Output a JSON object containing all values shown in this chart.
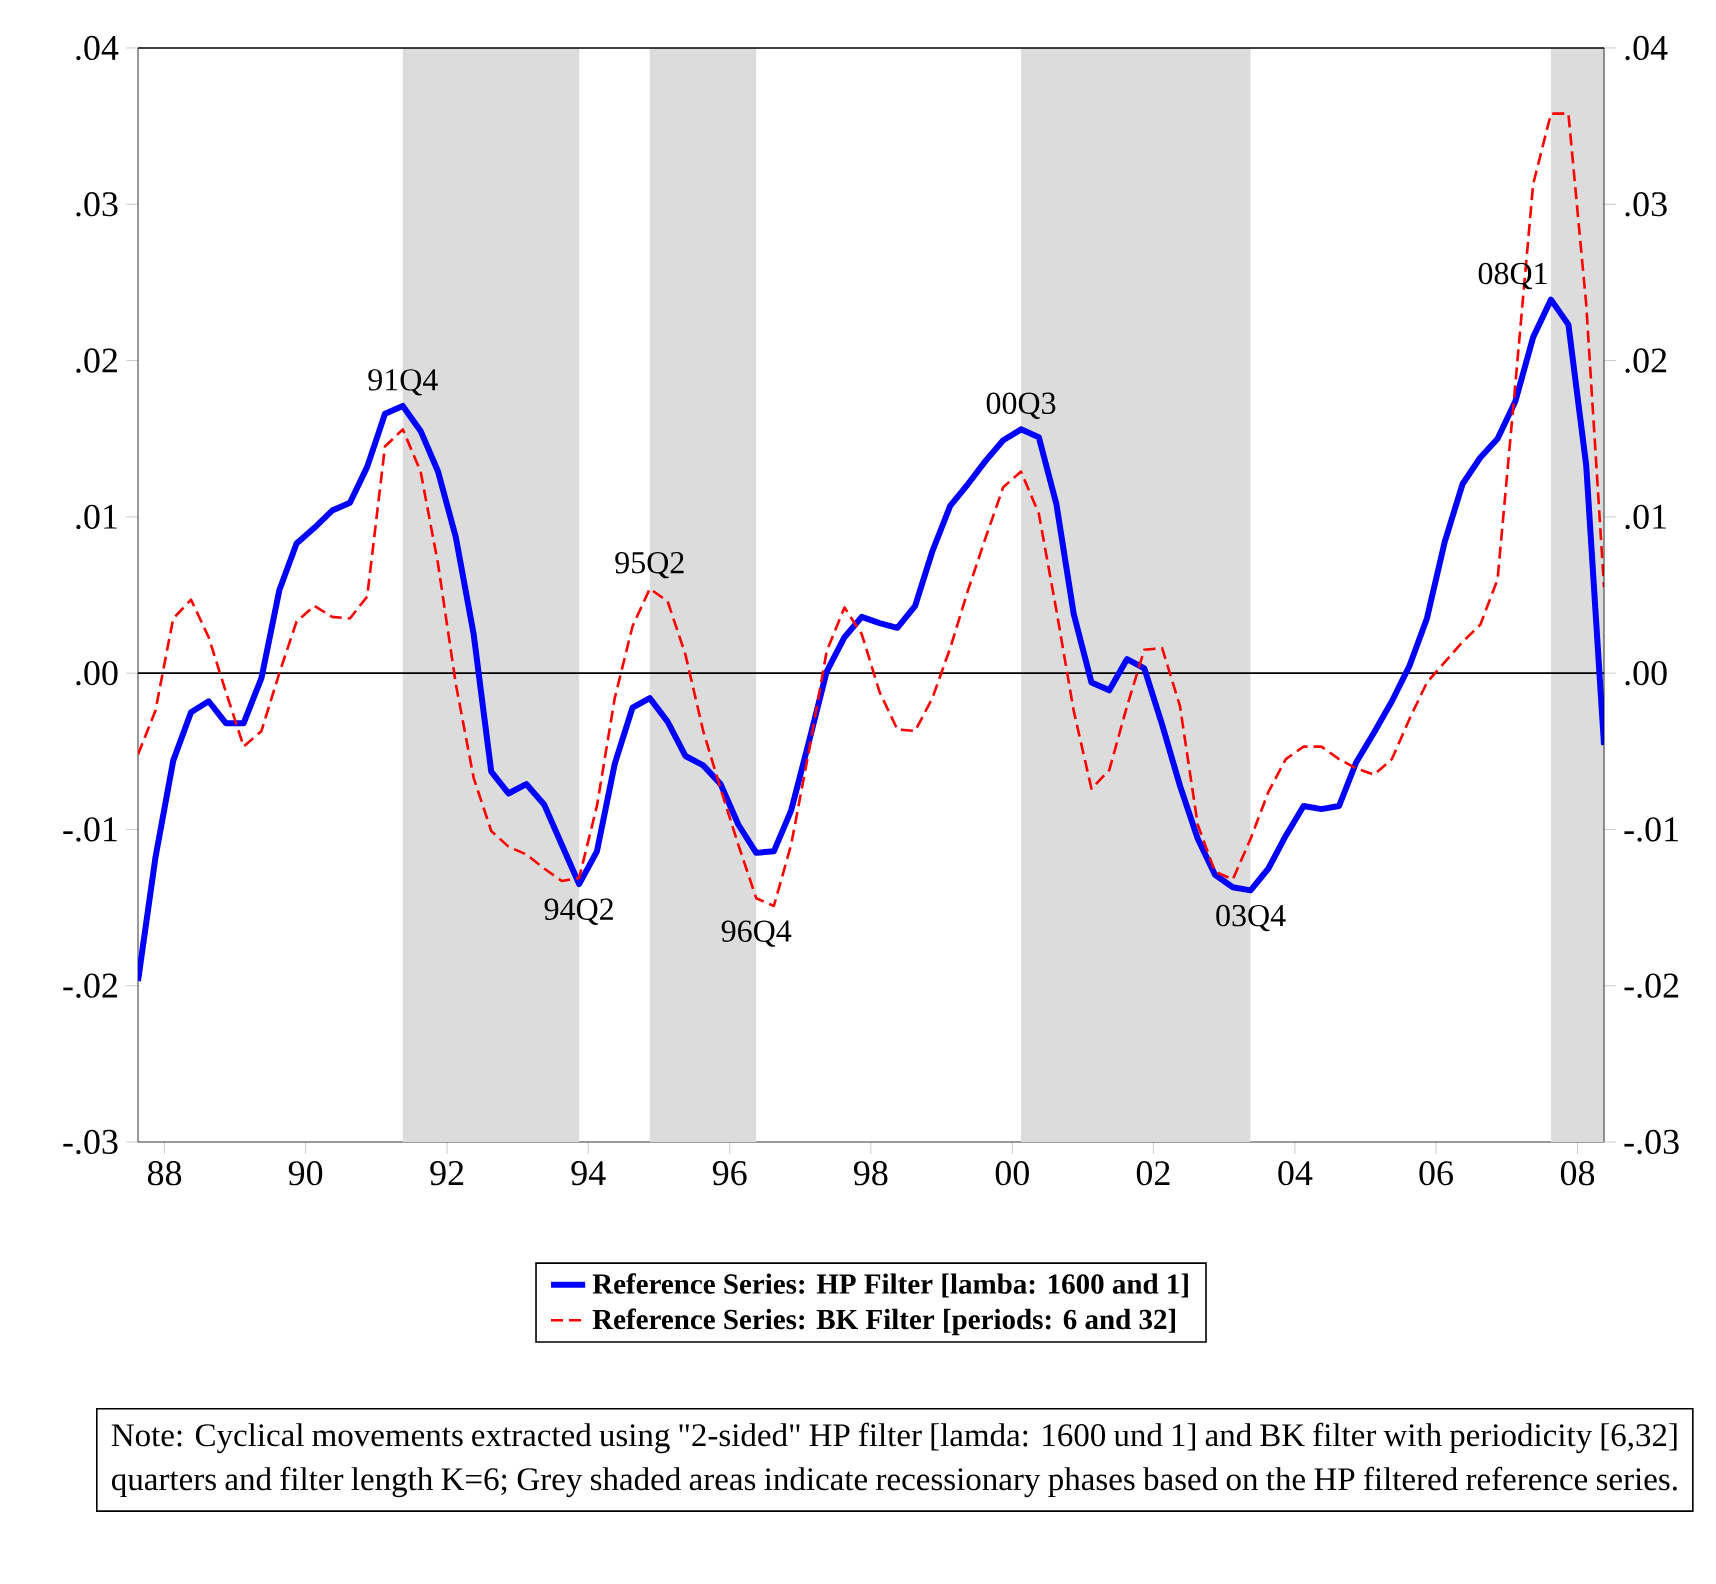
{
  "chart_data": {
    "type": "line",
    "x": [
      "1988-02-15",
      "1988-05-15",
      "1988-08-15",
      "1988-11-15",
      "1989-02-15",
      "1989-05-15",
      "1989-08-15",
      "1989-11-15",
      "1990-02-15",
      "1990-05-15",
      "1990-08-15",
      "1990-11-15",
      "1991-02-15",
      "1991-05-15",
      "1991-08-15",
      "1991-11-15",
      "1992-02-15",
      "1992-05-15",
      "1992-08-15",
      "1992-11-15",
      "1993-02-15",
      "1993-05-15",
      "1993-08-15",
      "1993-11-15",
      "1994-02-15",
      "1994-05-15",
      "1994-08-15",
      "1994-11-15",
      "1995-02-15",
      "1995-05-15",
      "1995-08-15",
      "1995-11-15",
      "1996-02-15",
      "1996-05-15",
      "1996-08-15",
      "1996-11-15",
      "1997-02-15",
      "1997-05-15",
      "1997-08-15",
      "1997-11-15",
      "1998-02-15",
      "1998-05-15",
      "1998-08-15",
      "1998-11-15",
      "1999-02-15",
      "1999-05-15",
      "1999-08-15",
      "1999-11-15",
      "2000-02-15",
      "2000-05-15",
      "2000-08-15",
      "2000-11-15",
      "2001-02-15",
      "2001-05-15",
      "2001-08-15",
      "2001-11-15",
      "2002-02-15",
      "2002-05-15",
      "2002-08-15",
      "2002-11-15",
      "2003-02-15",
      "2003-05-15",
      "2003-08-15",
      "2003-11-15",
      "2004-02-15",
      "2004-05-15",
      "2004-08-15",
      "2004-11-15",
      "2005-02-15",
      "2005-05-15",
      "2005-08-15",
      "2005-11-15",
      "2006-02-15",
      "2006-05-15",
      "2006-08-15",
      "2006-11-15",
      "2007-02-15",
      "2007-05-15",
      "2007-08-15",
      "2007-11-15",
      "2008-02-15",
      "2008-05-15",
      "2008-08-15",
      "2008-11-15"
    ],
    "series": [
      {
        "name": "Reference Series: HP Filter [lamba: 1600 and 1]",
        "color": "#0000ff",
        "line_style": "solid",
        "values": [
          -0.0197,
          -0.0118,
          -0.0056,
          -0.0025,
          -0.0018,
          -0.0032,
          -0.0032,
          -0.0003,
          0.0053,
          0.0083,
          0.0093,
          0.0104,
          0.0109,
          0.0132,
          0.0166,
          0.0171,
          0.0155,
          0.0129,
          0.0087,
          0.0025,
          -0.0063,
          -0.0077,
          -0.0071,
          -0.0084,
          -0.011,
          -0.0135,
          -0.0114,
          -0.0058,
          -0.0022,
          -0.0016,
          -0.0031,
          -0.0053,
          -0.0059,
          -0.0071,
          -0.0097,
          -0.0115,
          -0.0114,
          -0.0088,
          -0.0044,
          0.0001,
          0.0023,
          0.0036,
          0.0032,
          0.0029,
          0.0043,
          0.0078,
          0.0107,
          0.0121,
          0.0136,
          0.0149,
          0.0156,
          0.0151,
          0.0108,
          0.0038,
          -0.0006,
          -0.0011,
          0.0009,
          0.0003,
          -0.0033,
          -0.0072,
          -0.0106,
          -0.0129,
          -0.0137,
          -0.0139,
          -0.0125,
          -0.0104,
          -0.0085,
          -0.0087,
          -0.0085,
          -0.0057,
          -0.0038,
          -0.0018,
          0.0005,
          0.0035,
          0.0084,
          0.0121,
          0.0138,
          0.015,
          0.0174,
          0.0215,
          0.0239,
          0.0223,
          0.0133,
          -0.0046
        ]
      },
      {
        "name": "Reference Series: BK Filter [periods: 6 and 32]",
        "color": "#ff0000",
        "line_style": "dashed",
        "values": [
          -0.0052,
          -0.0024,
          0.0035,
          0.0047,
          0.0023,
          -0.0012,
          -0.0047,
          -0.0037,
          0.0,
          0.0033,
          0.0043,
          0.0036,
          0.0035,
          0.0049,
          0.0145,
          0.0156,
          0.0129,
          0.007,
          -0.0007,
          -0.0067,
          -0.0101,
          -0.0111,
          -0.0116,
          -0.0125,
          -0.0133,
          -0.0131,
          -0.0085,
          -0.0016,
          0.003,
          0.0054,
          0.0046,
          0.0012,
          -0.0037,
          -0.0074,
          -0.011,
          -0.0144,
          -0.0149,
          -0.011,
          -0.005,
          0.0014,
          0.0042,
          0.0025,
          -0.0012,
          -0.0036,
          -0.0037,
          -0.0016,
          0.0016,
          0.0053,
          0.0087,
          0.0119,
          0.0129,
          0.0102,
          0.004,
          -0.0024,
          -0.0074,
          -0.0062,
          -0.0021,
          0.0015,
          0.0016,
          -0.0021,
          -0.0097,
          -0.0127,
          -0.0132,
          -0.0106,
          -0.0076,
          -0.0055,
          -0.0047,
          -0.0047,
          -0.0055,
          -0.0061,
          -0.0065,
          -0.0055,
          -0.0029,
          -0.0006,
          0.0007,
          0.002,
          0.0031,
          0.006,
          0.0185,
          0.0313,
          0.0358,
          0.0358,
          0.0236,
          0.0055
        ]
      }
    ],
    "xlim": [
      "1988-02-15",
      "2008-11-15"
    ],
    "xticks": [
      {
        "value": "1988-07-01",
        "label": "88"
      },
      {
        "value": "1990-07-01",
        "label": "90"
      },
      {
        "value": "1992-07-01",
        "label": "92"
      },
      {
        "value": "1994-07-01",
        "label": "94"
      },
      {
        "value": "1996-07-01",
        "label": "96"
      },
      {
        "value": "1998-07-01",
        "label": "98"
      },
      {
        "value": "2000-07-01",
        "label": "00"
      },
      {
        "value": "2002-07-01",
        "label": "02"
      },
      {
        "value": "2004-07-01",
        "label": "04"
      },
      {
        "value": "2006-07-01",
        "label": "06"
      },
      {
        "value": "2008-07-01",
        "label": "08"
      }
    ],
    "ylim": [
      -0.03,
      0.04
    ],
    "yticks": [
      {
        "value": -0.03,
        "label": "-.03"
      },
      {
        "value": -0.02,
        "label": "-.02"
      },
      {
        "value": -0.01,
        "label": "-.01"
      },
      {
        "value": 0,
        "label": ".00"
      },
      {
        "value": 0.01,
        "label": ".01"
      },
      {
        "value": 0.02,
        "label": ".02"
      },
      {
        "value": 0.03,
        "label": ".03"
      },
      {
        "value": 0.04,
        "label": ".04"
      }
    ],
    "y2lim": [
      -0.03,
      0.04
    ],
    "y2ticks": [
      {
        "value": -0.03,
        "label": "-.03"
      },
      {
        "value": -0.02,
        "label": "-.02"
      },
      {
        "value": -0.01,
        "label": "-.01"
      },
      {
        "value": 0,
        "label": ".00"
      },
      {
        "value": 0.01,
        "label": ".01"
      },
      {
        "value": 0.02,
        "label": ".02"
      },
      {
        "value": 0.03,
        "label": ".03"
      },
      {
        "value": 0.04,
        "label": ".04"
      }
    ],
    "ref_lines": [
      {
        "axis": "y",
        "value": 0,
        "color": "#000000"
      }
    ],
    "bands": [
      {
        "axis": "x",
        "from": "1991-11-15",
        "to": "1994-05-15",
        "color": "#dcdcdc"
      },
      {
        "axis": "x",
        "from": "1995-05-15",
        "to": "1996-11-15",
        "color": "#dcdcdc"
      },
      {
        "axis": "x",
        "from": "2000-08-15",
        "to": "2003-11-15",
        "color": "#dcdcdc"
      },
      {
        "axis": "x",
        "from": "2008-02-15",
        "to": "2008-11-15",
        "color": "#dcdcdc"
      }
    ],
    "annotations": [
      {
        "text": "91Q4",
        "x": "1991-11-15",
        "y": 0.0171
      },
      {
        "text": "94Q2",
        "x": "1994-05-15",
        "y": -0.0135
      },
      {
        "text": "95Q2",
        "x": "1995-05-15",
        "y": 0.0054
      },
      {
        "text": "96Q4",
        "x": "1996-11-15",
        "y": -0.0149
      },
      {
        "text": "00Q3",
        "x": "2000-08-15",
        "y": 0.0156
      },
      {
        "text": "03Q4",
        "x": "2003-11-15",
        "y": -0.0139
      },
      {
        "text": "08Q1",
        "x": "2008-02-15",
        "y": 0.0239
      },
      "Note: Cyclical movements extracted using \"2-sided\" HP filter [lamda: 1600 und 1] and BK filter with periodicity [6,32] quarters and filter length K=6; Grey shaded areas indicate recessionary phases based on the HP filtered reference series."
    ],
    "legend": "bottom",
    "grid": false
  }
}
